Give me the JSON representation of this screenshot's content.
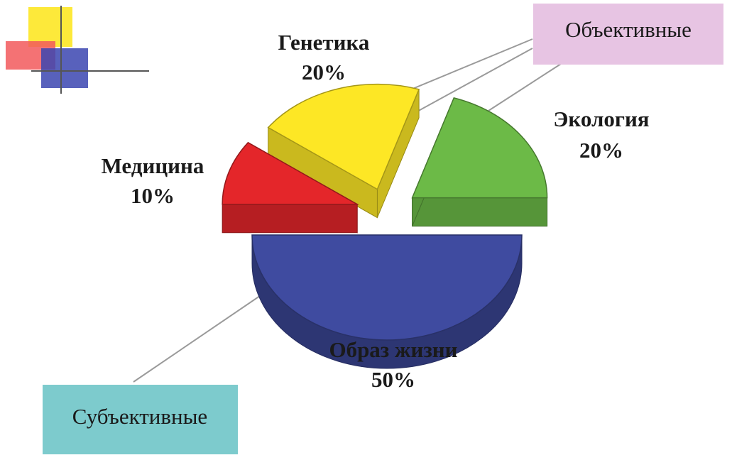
{
  "chart_data": {
    "type": "pie",
    "title": "",
    "categories": [
      "Медицина",
      "Генетика",
      "Экология",
      "Образ жизни"
    ],
    "values": [
      10,
      20,
      20,
      50
    ],
    "value_labels": [
      "10%",
      "20%",
      "20%",
      "50%"
    ],
    "colors": [
      "#e4262a",
      "#fde725",
      "#6cba47",
      "#3f4ba0"
    ],
    "legend": "none"
  },
  "callouts": {
    "objective": {
      "label": "Объективные",
      "color": "#e7c4e3"
    },
    "subjective": {
      "label": "Субъективные",
      "color": "#7dcbcd"
    }
  }
}
